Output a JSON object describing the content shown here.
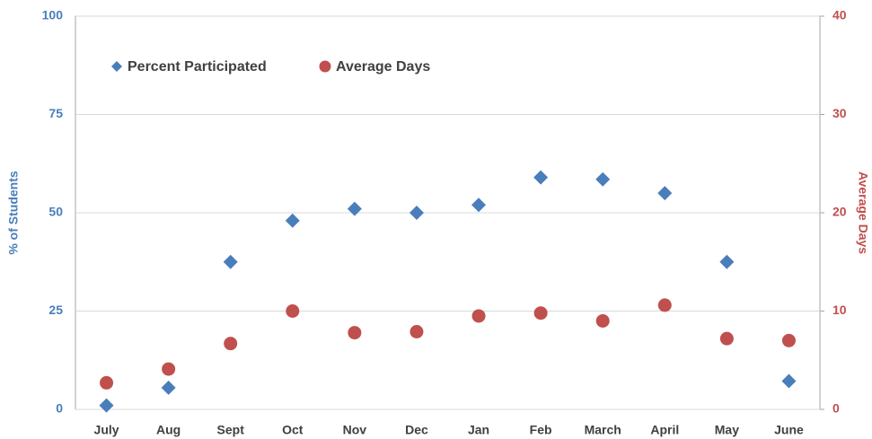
{
  "chart_data": {
    "type": "scatter",
    "categories": [
      "July",
      "Aug",
      "Sept",
      "Oct",
      "Nov",
      "Dec",
      "Jan",
      "Feb",
      "March",
      "April",
      "May",
      "June"
    ],
    "series": [
      {
        "name": "Percent Participated",
        "color": "#4a7ebb",
        "marker": "diamond",
        "values": [
          1,
          5.5,
          37.5,
          48,
          51,
          50,
          52,
          59,
          58.5,
          55,
          37.5,
          7.2
        ]
      },
      {
        "name": "Average Days",
        "color": "#c0504d",
        "marker": "circle",
        "axis": "y2",
        "values": [
          2.7,
          4.1,
          6.7,
          10,
          7.8,
          7.9,
          9.5,
          9.8,
          9,
          10.6,
          7.2,
          7
        ]
      }
    ],
    "ylabel": "% of Students",
    "y2label": "Average Days",
    "ylim": [
      0,
      100
    ],
    "yticks": [
      0,
      25,
      50,
      75,
      100
    ],
    "y2lim": [
      0,
      40
    ],
    "y2ticks": [
      0,
      10,
      20,
      30,
      40
    ],
    "grid": true,
    "legend": "top-left"
  }
}
